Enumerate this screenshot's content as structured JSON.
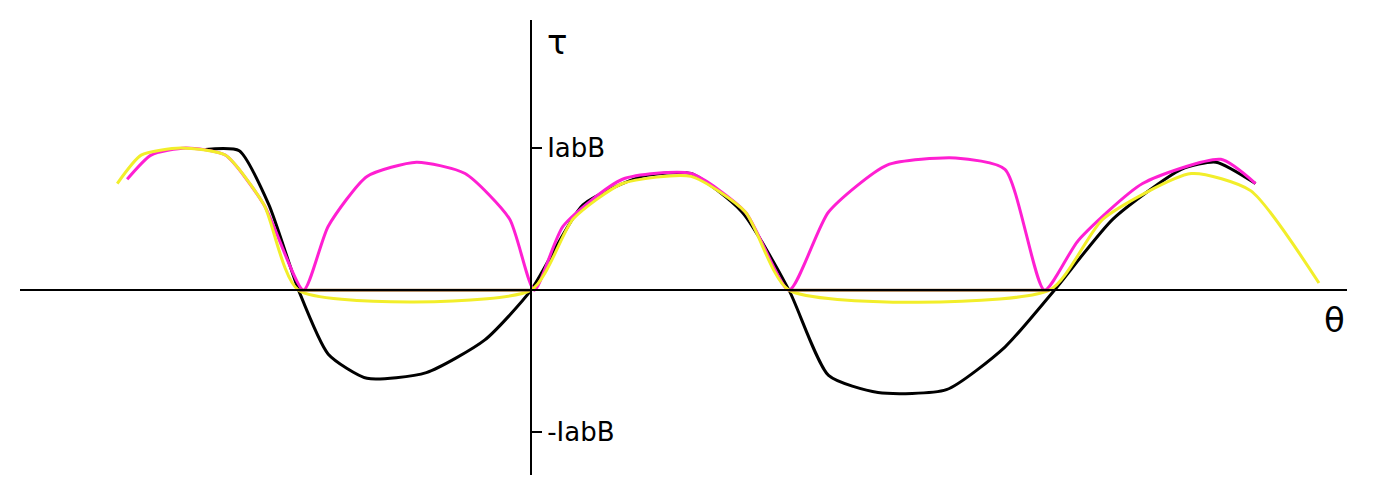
{
  "chart_data": {
    "type": "line",
    "xlabel": "θ",
    "ylabel": "τ",
    "xlim": [
      -6.2,
      9.9
    ],
    "ylim": [
      -1.3,
      1.9
    ],
    "yticks": [
      {
        "value": 1,
        "label": "IabB"
      },
      {
        "value": -1,
        "label": "-IabB"
      }
    ],
    "tick_labels": "y",
    "grid": false,
    "series": [
      {
        "color": "#000000",
        "x": [
          -3.95,
          -3.54,
          -3.18,
          -2.82,
          -2.46,
          -1.99,
          -1.27,
          -0.56,
          0,
          0.63,
          1.35,
          1.94,
          2.56,
          3.13,
          3.61,
          4.21,
          5.04,
          5.75,
          6.35,
          7.06,
          7.89,
          8.31,
          8.79
        ],
        "values": [
          0.99,
          0.98,
          0.6,
          0,
          -0.45,
          -0.62,
          -0.58,
          -0.35,
          0,
          0.6,
          0.8,
          0.82,
          0.55,
          0,
          -0.6,
          -0.72,
          -0.7,
          -0.4,
          0,
          0.5,
          0.85,
          0.9,
          0.75
        ]
      },
      {
        "color": "#ff1fd2",
        "x": [
          -4.9,
          -4.61,
          -4.19,
          -3.71,
          -3.24,
          -2.76,
          -2.46,
          -1.99,
          -1.39,
          -0.8,
          -0.26,
          0.04,
          0.39,
          1.11,
          1.94,
          2.6,
          3.13,
          3.61,
          4.32,
          5.15,
          5.75,
          6.23,
          6.64,
          7.42,
          8.37,
          8.79
        ],
        "values": [
          0.78,
          0.95,
          1.0,
          0.95,
          0.6,
          0,
          0.45,
          0.8,
          0.9,
          0.82,
          0.5,
          0,
          0.45,
          0.78,
          0.82,
          0.55,
          0,
          0.55,
          0.88,
          0.93,
          0.85,
          0,
          0.35,
          0.75,
          0.92,
          0.75
        ]
      },
      {
        "color": "#f2ee2a",
        "x": [
          -5.02,
          -4.73,
          -4.25,
          -3.71,
          -3.24,
          -2.82,
          0,
          0.51,
          1.11,
          1.94,
          2.6,
          3.13,
          6.29,
          6.94,
          8.01,
          8.73,
          9.56
        ],
        "values": [
          0.75,
          0.95,
          1.0,
          0.95,
          0.6,
          0,
          0,
          0.5,
          0.75,
          0.8,
          0.55,
          0,
          0,
          0.5,
          0.82,
          0.7,
          0.05
        ]
      },
      {
        "color": "#9c6b3a",
        "x": [
          -2.82,
          0
        ],
        "values": [
          0,
          0
        ]
      },
      {
        "color": "#9c6b3a",
        "x": [
          3.13,
          6.29
        ],
        "values": [
          0,
          0
        ]
      }
    ]
  }
}
